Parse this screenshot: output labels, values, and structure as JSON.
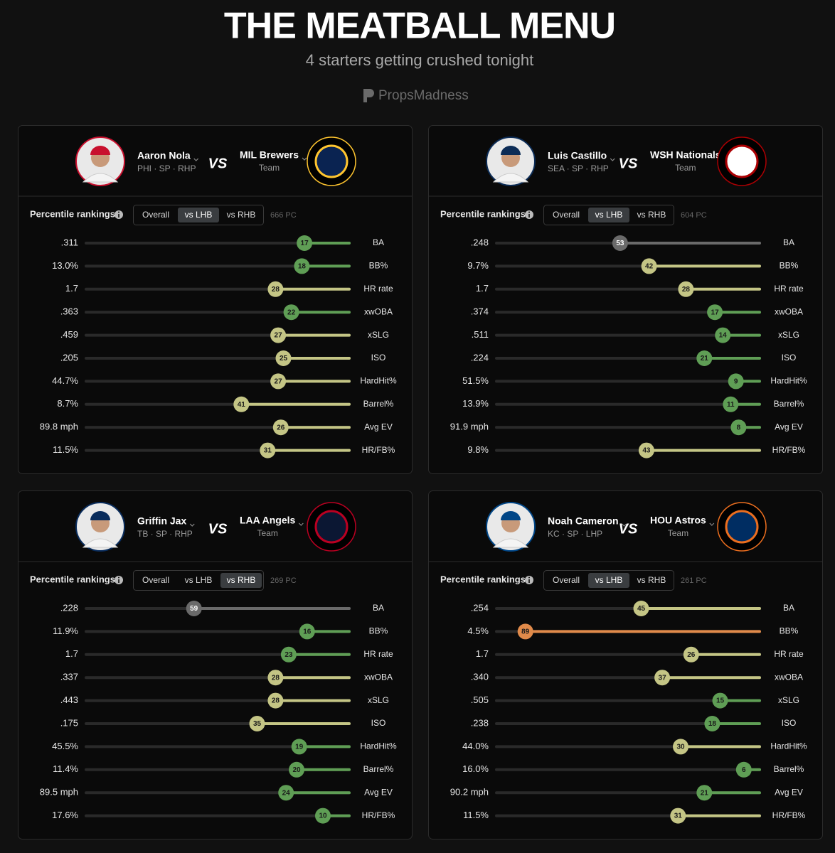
{
  "header": {
    "title": "THE MEATBALL MENU",
    "subtitle": "4 starters getting crushed tonight",
    "brand": "PropsMadness"
  },
  "labels": {
    "percentile_rankings": "Percentile rankings",
    "tabs": [
      "Overall",
      "vs LHB",
      "vs RHB"
    ],
    "vs": "VS"
  },
  "cards": [
    {
      "pitcher": "Aaron Nola",
      "pitcher_info": "PHI · SP · RHP",
      "team": "MIL Brewers",
      "team_info": "Team",
      "active_tab": 1,
      "pc": "666 PC",
      "rows": [
        {
          "value": ".311",
          "percentile": 17,
          "stat": "BA"
        },
        {
          "value": "13.0%",
          "percentile": 18,
          "stat": "BB%"
        },
        {
          "value": "1.7",
          "percentile": 28,
          "stat": "HR rate"
        },
        {
          "value": ".363",
          "percentile": 22,
          "stat": "xwOBA"
        },
        {
          "value": ".459",
          "percentile": 27,
          "stat": "xSLG"
        },
        {
          "value": ".205",
          "percentile": 25,
          "stat": "ISO"
        },
        {
          "value": "44.7%",
          "percentile": 27,
          "stat": "HardHit%"
        },
        {
          "value": "8.7%",
          "percentile": 41,
          "stat": "Barrel%"
        },
        {
          "value": "89.8 mph",
          "percentile": 26,
          "stat": "Avg EV"
        },
        {
          "value": "11.5%",
          "percentile": 31,
          "stat": "HR/FB%"
        }
      ]
    },
    {
      "pitcher": "Luis Castillo",
      "pitcher_info": "SEA · SP · RHP",
      "team": "WSH Nationals",
      "team_info": "Team",
      "active_tab": 1,
      "pc": "604 PC",
      "rows": [
        {
          "value": ".248",
          "percentile": 53,
          "stat": "BA"
        },
        {
          "value": "9.7%",
          "percentile": 42,
          "stat": "BB%"
        },
        {
          "value": "1.7",
          "percentile": 28,
          "stat": "HR rate"
        },
        {
          "value": ".374",
          "percentile": 17,
          "stat": "xwOBA"
        },
        {
          "value": ".511",
          "percentile": 14,
          "stat": "xSLG"
        },
        {
          "value": ".224",
          "percentile": 21,
          "stat": "ISO"
        },
        {
          "value": "51.5%",
          "percentile": 9,
          "stat": "HardHit%"
        },
        {
          "value": "13.9%",
          "percentile": 11,
          "stat": "Barrel%"
        },
        {
          "value": "91.9 mph",
          "percentile": 8,
          "stat": "Avg EV"
        },
        {
          "value": "9.8%",
          "percentile": 43,
          "stat": "HR/FB%"
        }
      ]
    },
    {
      "pitcher": "Griffin Jax",
      "pitcher_info": "TB · SP · RHP",
      "team": "LAA Angels",
      "team_info": "Team",
      "active_tab": 2,
      "pc": "269 PC",
      "rows": [
        {
          "value": ".228",
          "percentile": 59,
          "stat": "BA"
        },
        {
          "value": "11.9%",
          "percentile": 16,
          "stat": "BB%"
        },
        {
          "value": "1.7",
          "percentile": 23,
          "stat": "HR rate"
        },
        {
          "value": ".337",
          "percentile": 28,
          "stat": "xwOBA"
        },
        {
          "value": ".443",
          "percentile": 28,
          "stat": "xSLG"
        },
        {
          "value": ".175",
          "percentile": 35,
          "stat": "ISO"
        },
        {
          "value": "45.5%",
          "percentile": 19,
          "stat": "HardHit%"
        },
        {
          "value": "11.4%",
          "percentile": 20,
          "stat": "Barrel%"
        },
        {
          "value": "89.5 mph",
          "percentile": 24,
          "stat": "Avg EV"
        },
        {
          "value": "17.6%",
          "percentile": 10,
          "stat": "HR/FB%"
        }
      ]
    },
    {
      "pitcher": "Noah Cameron",
      "pitcher_info": "KC · SP · LHP",
      "team": "HOU Astros",
      "team_info": "Team",
      "active_tab": 1,
      "pc": "261 PC",
      "rows": [
        {
          "value": ".254",
          "percentile": 45,
          "stat": "BA"
        },
        {
          "value": "4.5%",
          "percentile": 89,
          "stat": "BB%"
        },
        {
          "value": "1.7",
          "percentile": 26,
          "stat": "HR rate"
        },
        {
          "value": ".340",
          "percentile": 37,
          "stat": "xwOBA"
        },
        {
          "value": ".505",
          "percentile": 15,
          "stat": "xSLG"
        },
        {
          "value": ".238",
          "percentile": 18,
          "stat": "ISO"
        },
        {
          "value": "44.0%",
          "percentile": 30,
          "stat": "HardHit%"
        },
        {
          "value": "16.0%",
          "percentile": 6,
          "stat": "Barrel%"
        },
        {
          "value": "90.2 mph",
          "percentile": 21,
          "stat": "Avg EV"
        },
        {
          "value": "11.5%",
          "percentile": 31,
          "stat": "HR/FB%"
        }
      ]
    }
  ]
}
